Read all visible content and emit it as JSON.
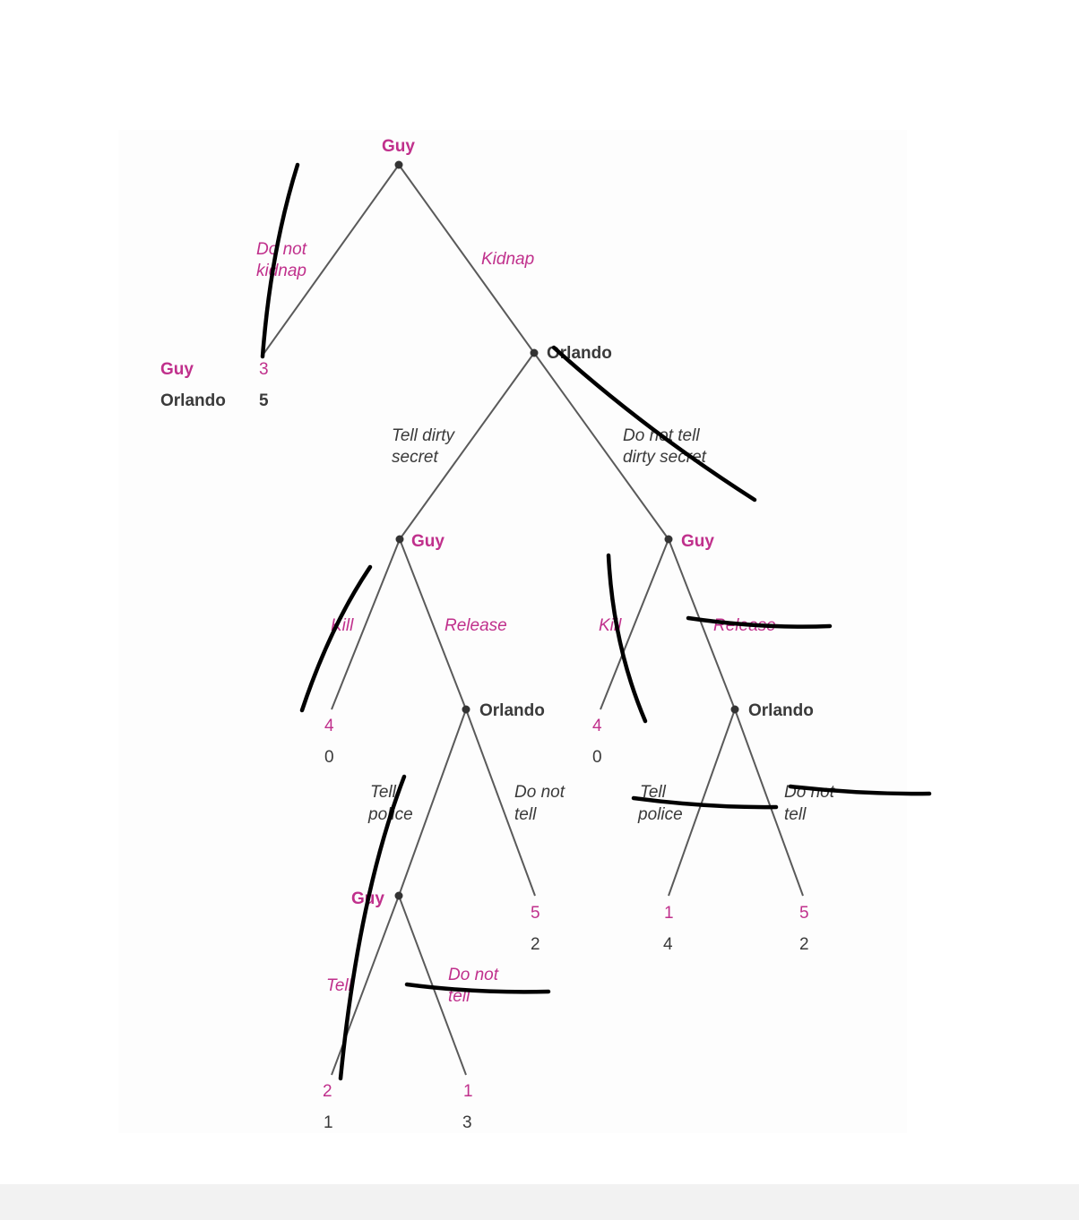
{
  "players": {
    "first": "Guy",
    "second": "Orlando"
  },
  "nodes": {
    "root": "Guy",
    "n_kidnap": "Orlando",
    "n_tell_secret": "Guy",
    "n_no_secret": "Guy",
    "n_release_a": "Orlando",
    "n_release_b": "Orlando",
    "n_tell_police": "Guy"
  },
  "actions": {
    "do_not_kidnap_1": "Do not",
    "do_not_kidnap_2": "kidnap",
    "kidnap": "Kidnap",
    "tell_secret_1": "Tell dirty",
    "tell_secret_2": "secret",
    "no_secret_1": "Do not tell",
    "no_secret_2": "dirty secret",
    "kill_a": "Kill",
    "release_a": "Release",
    "kill_b": "Kill",
    "release_b": "Release",
    "tell_police_a_1": "Tell",
    "tell_police_a_2": "police",
    "not_tell_a_1": "Do not",
    "not_tell_a_2": "tell",
    "tell_police_b_1": "Tell",
    "tell_police_b_2": "police",
    "not_tell_b_1": "Do not",
    "not_tell_b_2": "tell",
    "tell_c": "Tell",
    "not_tell_c_1": "Do not",
    "not_tell_c_2": "tell"
  },
  "payoffs": {
    "no_kidnap": {
      "guy": "3",
      "orlando": "5"
    },
    "kill_a": {
      "guy": "4",
      "orlando": "0"
    },
    "kill_b": {
      "guy": "4",
      "orlando": "0"
    },
    "not_tell_a": {
      "guy": "5",
      "orlando": "2"
    },
    "tell_police_b": {
      "guy": "1",
      "orlando": "4"
    },
    "not_tell_b": {
      "guy": "5",
      "orlando": "2"
    },
    "tell_c": {
      "guy": "2",
      "orlando": "1"
    },
    "not_tell_c": {
      "guy": "1",
      "orlando": "3"
    }
  },
  "colors": {
    "guy": "#c0308c",
    "orlando": "#3a3a3a",
    "edge": "#5a5a5a",
    "handwriting": "#000000"
  }
}
